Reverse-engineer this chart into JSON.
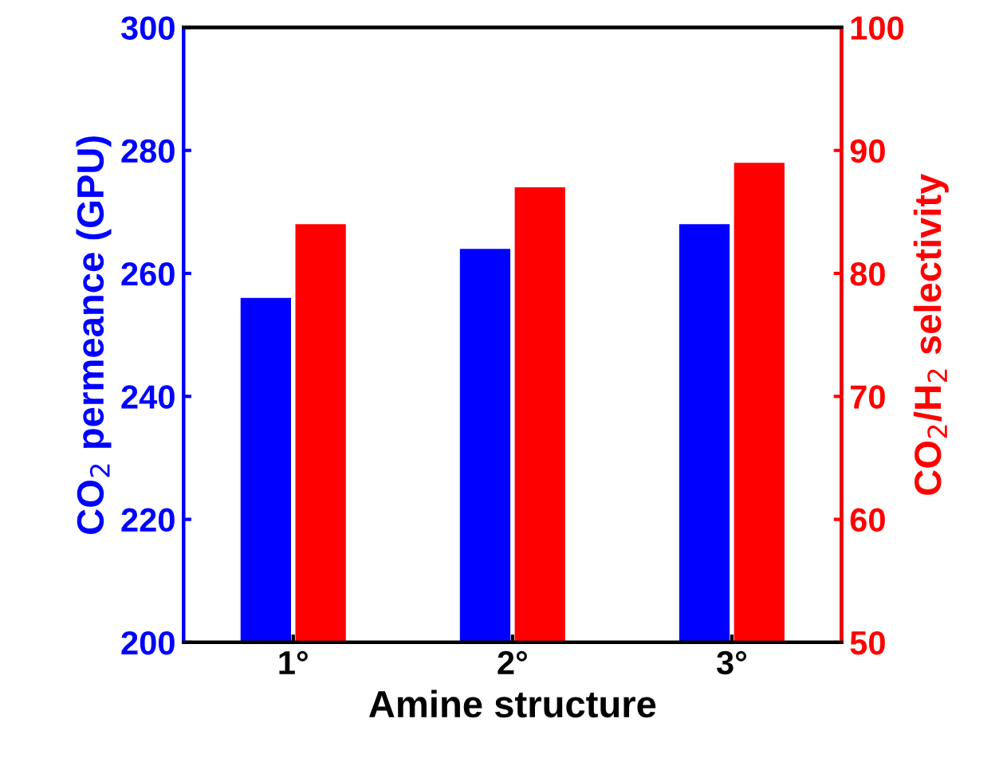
{
  "chart_data": {
    "type": "bar",
    "xlabel": "Amine structure",
    "ylabel": "CO$_{2}$ permeance (GPU)",
    "y2label": "CO$_{2}$/H$_{2}$ selectivity",
    "categories": [
      "1°",
      "2°",
      "3°"
    ],
    "series": [
      {
        "color": "#0000ff",
        "values": [
          256,
          264,
          268
        ]
      },
      {
        "color": "#ff0000",
        "values": [
          84,
          87,
          89
        ],
        "axis": "y2"
      }
    ],
    "ylim": [
      200,
      300
    ],
    "yticks": [
      200,
      220,
      240,
      260,
      280,
      300
    ],
    "y2lim": [
      50,
      100
    ],
    "y2ticks": [
      50,
      60,
      70,
      80,
      90,
      100
    ],
    "grid": false,
    "legend": false
  }
}
